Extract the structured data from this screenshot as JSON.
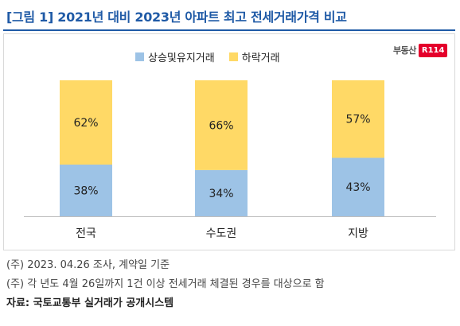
{
  "title": "[그림 1] 2021년 대비 2023년 아파트 최고 전세거래가격 비교",
  "logo": {
    "text": "부동산",
    "badge": "R114"
  },
  "colors": {
    "rise": "#9dc3e6",
    "fall": "#ffd966",
    "title": "#1f5aa6"
  },
  "chart_data": {
    "type": "bar",
    "stacked": true,
    "categories": [
      "전국",
      "수도권",
      "지방"
    ],
    "series": [
      {
        "name": "상승및유지거래",
        "values": [
          38,
          34,
          43
        ],
        "labels": [
          "38%",
          "34%",
          "43%"
        ]
      },
      {
        "name": "하락거래",
        "values": [
          62,
          66,
          57
        ],
        "labels": [
          "62%",
          "66%",
          "57%"
        ]
      }
    ],
    "ylim": [
      0,
      100
    ],
    "legend": "top"
  },
  "notes": [
    "(주) 2023. 04.26 조사, 계약일 기준",
    "(주) 각 년도 4월 26일까지 1건 이상 전세거래 체결된 경우를 대상으로 함"
  ],
  "source": "자료: 국토교통부 실거래가 공개시스템"
}
